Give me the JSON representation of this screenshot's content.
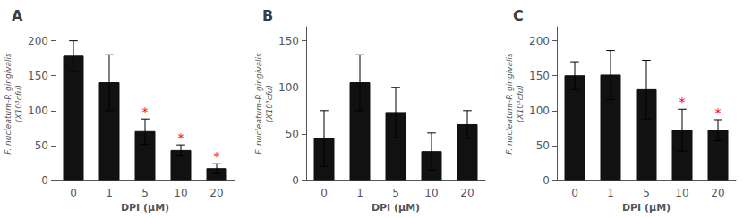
{
  "chart_data": [
    {
      "type": "bar",
      "title": "A",
      "xlabel": "DPI (μM)",
      "ylabel": "F. nucleatum-P. gingivalis\n(X10³cfu)",
      "categories": [
        "0",
        "1",
        "5",
        "10",
        "20"
      ],
      "values": [
        178,
        140,
        70,
        43,
        17
      ],
      "errors": [
        22,
        40,
        18,
        8,
        7
      ],
      "annotations": [
        {
          "category": "5",
          "text": "*",
          "color": "#ff0000"
        },
        {
          "category": "10",
          "text": "*",
          "color": "#ff0000"
        },
        {
          "category": "20",
          "text": "*",
          "color": "#ff0000"
        }
      ],
      "color": "#111111",
      "ylim": [
        0,
        220
      ],
      "yticks": [
        0,
        50,
        100,
        150,
        200
      ],
      "grid": false
    },
    {
      "type": "bar",
      "title": "B",
      "xlabel": "DPI (μM)",
      "ylabel": "F. nucleatum-P. gingivalis\n(X10³cfu)",
      "categories": [
        "0",
        "1",
        "5",
        "10",
        "20"
      ],
      "values": [
        45,
        105,
        73,
        31,
        60
      ],
      "errors": [
        30,
        30,
        27,
        20,
        15
      ],
      "color": "#111111",
      "ylim": [
        0,
        165
      ],
      "yticks": [
        0,
        50,
        100,
        150
      ],
      "grid": false
    },
    {
      "type": "bar",
      "title": "C",
      "xlabel": "DPI (μM)",
      "ylabel": "F. nucleatum-P. gingivalis\n(X10³cfu)",
      "categories": [
        "0",
        "1",
        "5",
        "10",
        "20"
      ],
      "values": [
        150,
        151,
        130,
        72,
        72
      ],
      "errors": [
        20,
        35,
        42,
        30,
        15
      ],
      "annotations": [
        {
          "category": "10",
          "text": "*",
          "color": "#ff0000"
        },
        {
          "category": "20",
          "text": "*",
          "color": "#ff0000"
        }
      ],
      "color": "#111111",
      "ylim": [
        0,
        220
      ],
      "yticks": [
        0,
        50,
        100,
        150,
        200
      ],
      "grid": false
    }
  ]
}
